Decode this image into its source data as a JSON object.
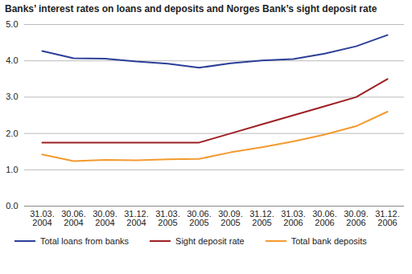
{
  "chart_data": {
    "type": "line",
    "title": "Banks’ interest rates on loans and deposits and Norges Bank’s sight deposit rate",
    "categories": [
      "31.03.\n2004",
      "30.06.\n2004",
      "30.09.\n2004",
      "31.12.\n2004",
      "31.03.\n2005",
      "30.06.\n2005",
      "30.09.\n2005",
      "31.12.\n2005",
      "31.03.\n2006",
      "30.06.\n2006",
      "30.09.\n2006",
      "31.12.\n2006"
    ],
    "series": [
      {
        "name": "Total loans from banks",
        "color": "#2b3f98",
        "values": [
          4.27,
          4.07,
          4.06,
          3.98,
          3.92,
          3.81,
          3.93,
          4.01,
          4.05,
          4.2,
          4.4,
          4.71
        ]
      },
      {
        "name": "Sight deposit rate",
        "color": "#9e1f24",
        "values": [
          1.75,
          1.75,
          1.75,
          1.75,
          1.75,
          1.75,
          2.0,
          2.25,
          2.5,
          2.75,
          3.0,
          3.5
        ]
      },
      {
        "name": "Total bank deposits",
        "color": "#f39a2e",
        "values": [
          1.42,
          1.24,
          1.27,
          1.26,
          1.29,
          1.3,
          1.48,
          1.62,
          1.78,
          1.97,
          2.2,
          2.6
        ]
      }
    ],
    "ylim": [
      0,
      5
    ],
    "yticks": [
      0,
      1,
      2,
      3,
      4,
      5
    ],
    "grid": true,
    "legend": "bottom"
  }
}
